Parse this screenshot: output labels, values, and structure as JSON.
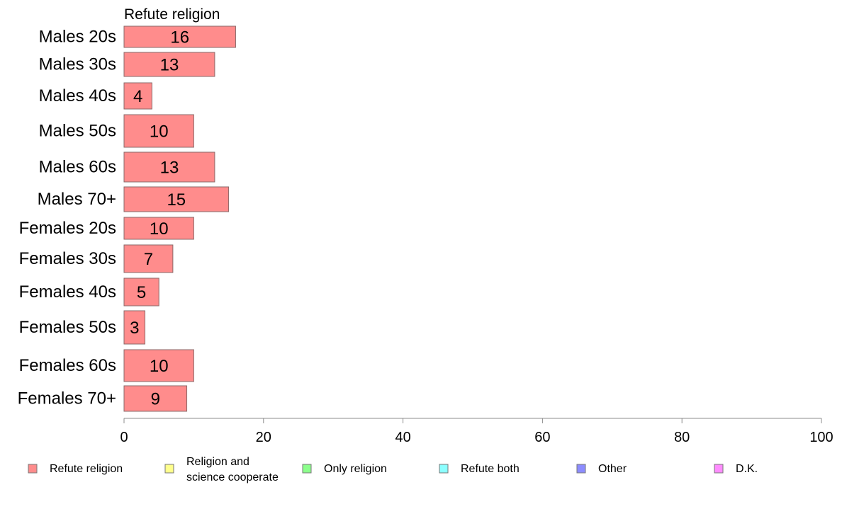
{
  "chart_data": {
    "type": "bar",
    "orientation": "horizontal",
    "stacked": true,
    "categories": [
      "Males 20s",
      "Males 30s",
      "Males 40s",
      "Males 50s",
      "Males 60s",
      "Males 70+",
      "Females 20s",
      "Females 30s",
      "Females 40s",
      "Females 50s",
      "Females 60s",
      "Females 70+"
    ],
    "series": [
      {
        "name": "Refute religion",
        "values": [
          16,
          13,
          4,
          10,
          13,
          15,
          10,
          7,
          5,
          3,
          10,
          9
        ]
      }
    ],
    "column_title": "Refute religion",
    "xlim": [
      0,
      100
    ],
    "xticks": [
      0,
      20,
      40,
      60,
      80,
      100
    ],
    "grid": false,
    "legend": {
      "placement": "bottom",
      "entries": [
        {
          "label": "Refute religion",
          "color": "#ff8c8c"
        },
        {
          "label": "Religion and\nscience cooperate",
          "color": "#ffff8c"
        },
        {
          "label": "Only religion",
          "color": "#8cff8c"
        },
        {
          "label": "Refute both",
          "color": "#8cffff"
        },
        {
          "label": "Other",
          "color": "#8c8cff"
        },
        {
          "label": "D.K.",
          "color": "#ff8cff"
        }
      ]
    }
  }
}
